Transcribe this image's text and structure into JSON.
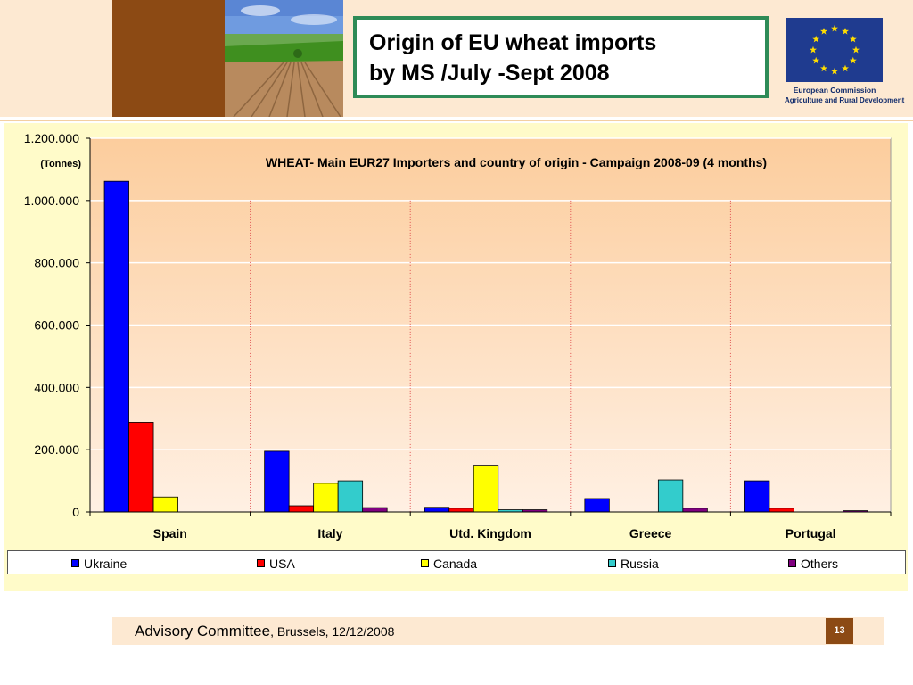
{
  "slide": {
    "title_line1": "Origin of EU wheat imports",
    "title_line2": "by MS /July -Sept 2008",
    "logo_name": "European Commission",
    "logo_department": "Agriculture and Rural Development",
    "footer_main": "Advisory Committee",
    "footer_sub": ", Brussels, 12/12/2008",
    "page_number": "13"
  },
  "colors": {
    "header_band": "#fde9d2",
    "brown_accent": "#8c4a14",
    "title_border": "#2e8b57",
    "chart_background": "#fffbc9",
    "eu_blue": "#1f3b8f",
    "eu_stars": "#ffdd00"
  },
  "chart_data": {
    "type": "bar",
    "title": "WHEAT- Main EUR27 Importers and country of origin - Campaign 2008-09 (4 months)",
    "ylabel": "(Tonnes)",
    "ylim": [
      0,
      1200000
    ],
    "yticks": [
      0,
      200000,
      400000,
      600000,
      800000,
      1000000,
      1200000
    ],
    "ytick_labels": [
      "0",
      "200.000",
      "400.000",
      "600.000",
      "800.000",
      "1.000.000",
      "1.200.000"
    ],
    "categories": [
      "Spain",
      "Italy",
      "Utd. Kingdom",
      "Greece",
      "Portugal"
    ],
    "series": [
      {
        "name": "Ukraine",
        "color": "#0000ff",
        "values": [
          1062000,
          195000,
          15000,
          43000,
          100000
        ]
      },
      {
        "name": "USA",
        "color": "#ff0000",
        "values": [
          288000,
          20000,
          12000,
          0,
          12000
        ]
      },
      {
        "name": "Canada",
        "color": "#ffff00",
        "values": [
          48000,
          92000,
          150000,
          0,
          0
        ]
      },
      {
        "name": "Russia",
        "color": "#33cccc",
        "values": [
          0,
          100000,
          7000,
          103000,
          0
        ]
      },
      {
        "name": "Others",
        "color": "#800080",
        "values": [
          0,
          14000,
          7000,
          12000,
          4000
        ]
      }
    ],
    "grid": true,
    "legend_position": "bottom"
  }
}
